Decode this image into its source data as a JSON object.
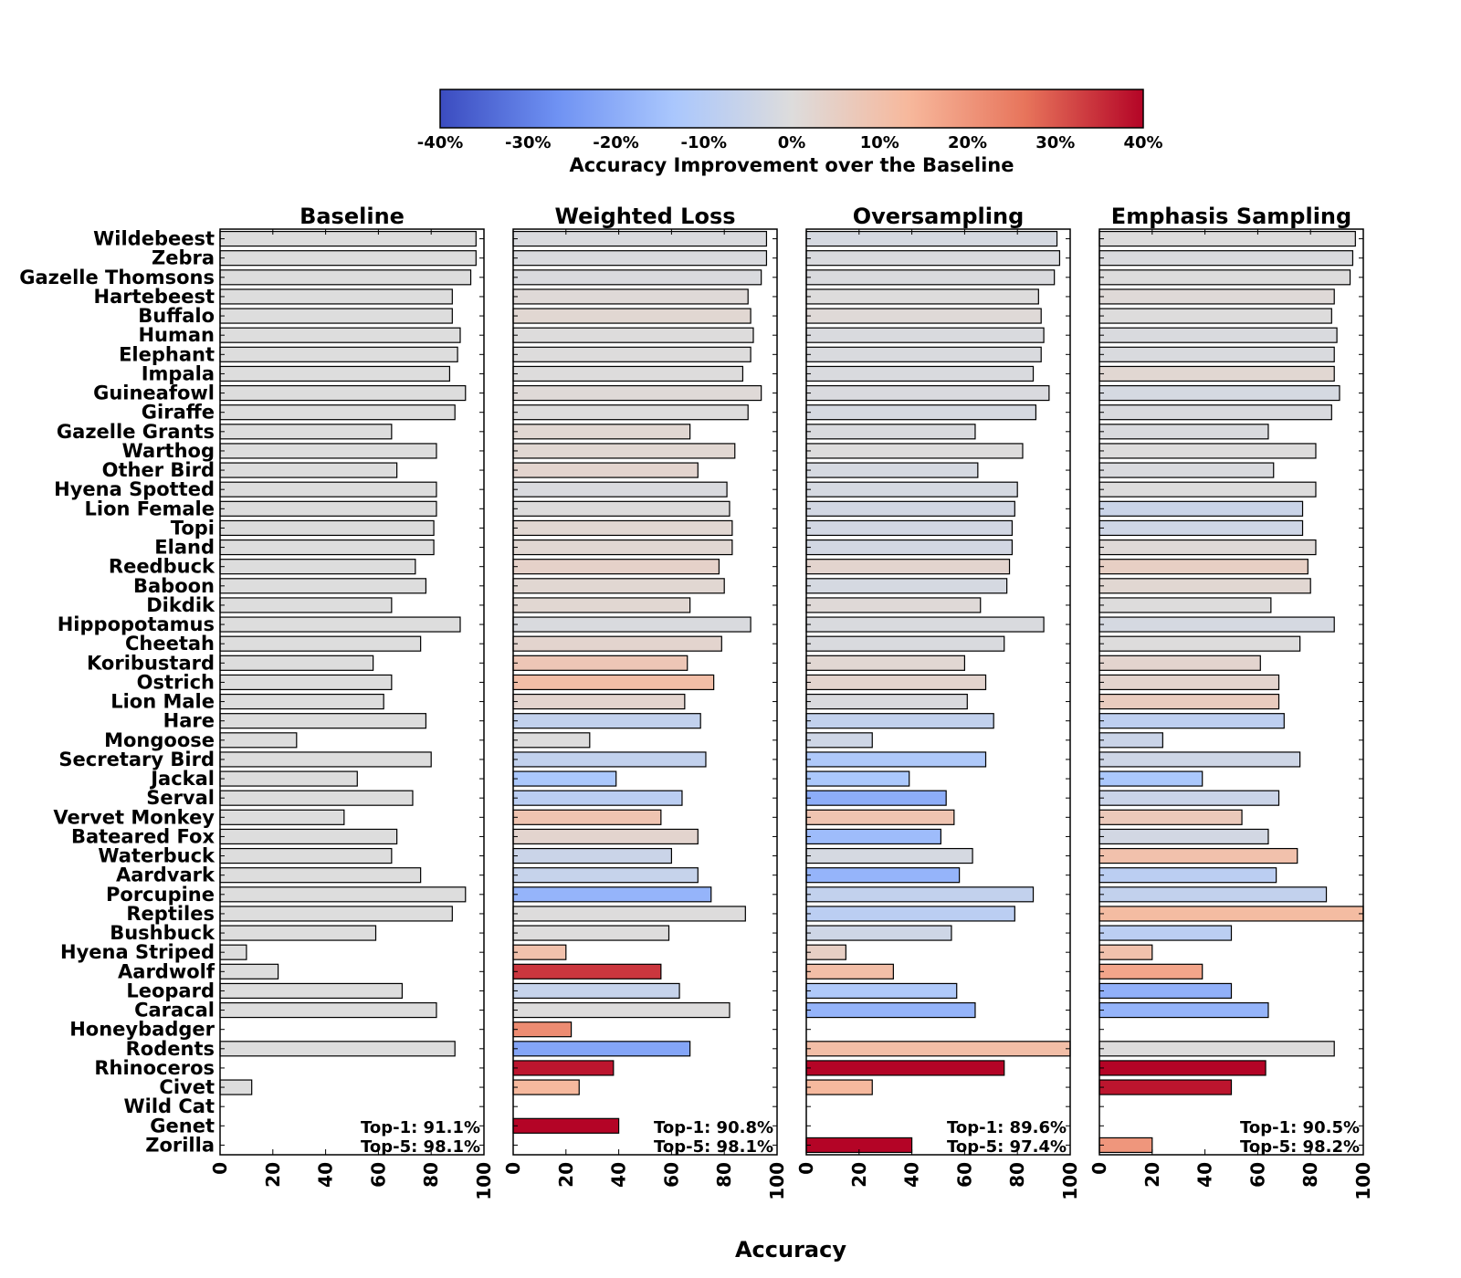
{
  "colorbar": {
    "label": "Accuracy Improvement over the Baseline",
    "ticks": [
      "-40%",
      "-30%",
      "-20%",
      "-10%",
      "0%",
      "10%",
      "20%",
      "30%",
      "40%"
    ],
    "range": [
      -40,
      40
    ],
    "colormap": "coolwarm",
    "colors": [
      "#3b4cc0",
      "#6f92f3",
      "#aac7fd",
      "#dddcdc",
      "#f7b89c",
      "#e7745b",
      "#b40426"
    ]
  },
  "xlabel": "Accuracy",
  "bar_outline_color": "#000000",
  "neutral_bar_color": "#dddddd",
  "chart_data": {
    "type": "bar",
    "orientation": "horizontal",
    "xlim": [
      0,
      100
    ],
    "xticks": [
      0,
      20,
      40,
      60,
      80,
      100
    ],
    "categories": [
      "Wildebeest",
      "Zebra",
      "Gazelle Thomsons",
      "Hartebeest",
      "Buffalo",
      "Human",
      "Elephant",
      "Impala",
      "Guineafowl",
      "Giraffe",
      "Gazelle Grants",
      "Warthog",
      "Other Bird",
      "Hyena Spotted",
      "Lion Female",
      "Topi",
      "Eland",
      "Reedbuck",
      "Baboon",
      "Dikdik",
      "Hippopotamus",
      "Cheetah",
      "Koribustard",
      "Ostrich",
      "Lion Male",
      "Hare",
      "Mongoose",
      "Secretary Bird",
      "Jackal",
      "Serval",
      "Vervet Monkey",
      "Bateared Fox",
      "Waterbuck",
      "Aardvark",
      "Porcupine",
      "Reptiles",
      "Bushbuck",
      "Hyena Striped",
      "Aardwolf",
      "Leopard",
      "Caracal",
      "Honeybadger",
      "Rodents",
      "Rhinoceros",
      "Civet",
      "Wild Cat",
      "Genet",
      "Zorilla"
    ],
    "series": [
      {
        "name": "Baseline",
        "top1": "Top-1: 91.1%",
        "top5": "Top-5: 98.1%",
        "values": [
          97,
          97,
          95,
          88,
          88,
          91,
          90,
          87,
          93,
          89,
          65,
          82,
          67,
          82,
          82,
          81,
          81,
          74,
          78,
          65,
          91,
          76,
          58,
          65,
          62,
          78,
          29,
          80,
          52,
          73,
          47,
          67,
          65,
          76,
          93,
          88,
          59,
          10,
          22,
          69,
          82,
          0,
          89,
          0,
          12,
          0,
          0,
          0
        ]
      },
      {
        "name": "Weighted Loss",
        "top1": "Top-1: 90.8%",
        "top5": "Top-5: 98.1%",
        "values": [
          96,
          96,
          94,
          89,
          90,
          91,
          90,
          87,
          94,
          89,
          67,
          84,
          70,
          81,
          82,
          83,
          83,
          78,
          80,
          67,
          90,
          79,
          66,
          76,
          65,
          71,
          29,
          73,
          39,
          64,
          56,
          70,
          60,
          70,
          75,
          88,
          59,
          20,
          56,
          63,
          82,
          22,
          67,
          38,
          25,
          0,
          40,
          0
        ]
      },
      {
        "name": "Oversampling",
        "top1": "Top-1: 89.6%",
        "top5": "Top-5: 97.4%",
        "values": [
          95,
          96,
          94,
          88,
          89,
          90,
          89,
          86,
          92,
          87,
          64,
          82,
          65,
          80,
          79,
          78,
          78,
          77,
          76,
          66,
          90,
          75,
          60,
          68,
          61,
          71,
          25,
          68,
          39,
          53,
          56,
          51,
          63,
          58,
          86,
          79,
          55,
          15,
          33,
          57,
          64,
          0,
          100,
          75,
          25,
          0,
          0,
          40
        ]
      },
      {
        "name": "Emphasis Sampling",
        "top1": "Top-1: 90.5%",
        "top5": "Top-5: 98.2%",
        "values": [
          97,
          96,
          95,
          89,
          88,
          90,
          89,
          89,
          91,
          88,
          64,
          82,
          66,
          82,
          77,
          77,
          82,
          79,
          80,
          65,
          89,
          76,
          61,
          68,
          68,
          70,
          24,
          76,
          39,
          68,
          54,
          64,
          75,
          67,
          86,
          100,
          50,
          20,
          39,
          50,
          64,
          0,
          89,
          63,
          50,
          0,
          0,
          20
        ]
      }
    ]
  }
}
